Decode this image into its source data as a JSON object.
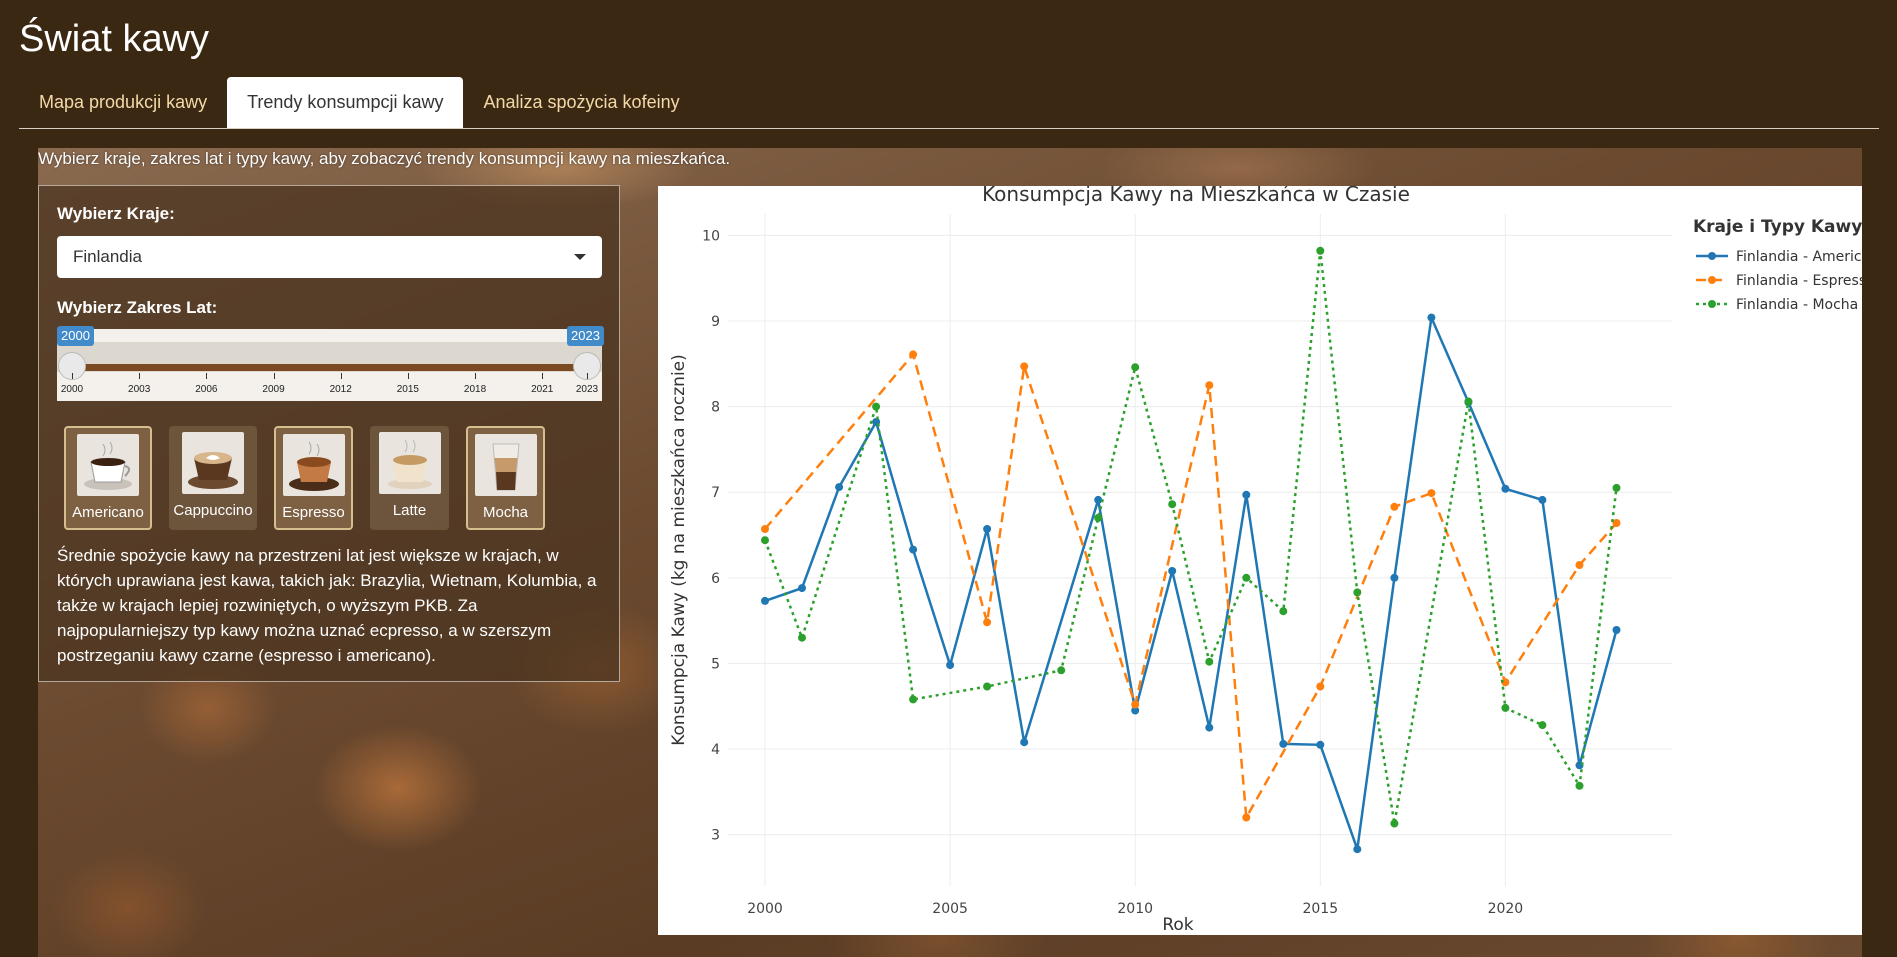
{
  "app": {
    "title": "Świat kawy"
  },
  "tabs": [
    {
      "label": "Mapa produkcji kawy",
      "active": false
    },
    {
      "label": "Trendy konsumpcji kawy",
      "active": true
    },
    {
      "label": "Analiza spożycia kofeiny",
      "active": false
    }
  ],
  "intro": "Wybierz kraje, zakres lat i typy kawy, aby zobaczyć trendy konsumpcji kawy na mieszkańca.",
  "sidebar": {
    "country_label": "Wybierz Kraje:",
    "country_value": "Finlandia",
    "years_label": "Wybierz Zakres Lat:",
    "year_min": "2000",
    "year_max": "2023",
    "year_ticks": [
      "2000",
      "2003",
      "2006",
      "2009",
      "2012",
      "2015",
      "2018",
      "2021",
      "2023"
    ],
    "coffee_types": [
      {
        "label": "Americano",
        "selected": true
      },
      {
        "label": "Cappuccino",
        "selected": false
      },
      {
        "label": "Espresso",
        "selected": true
      },
      {
        "label": "Latte",
        "selected": false
      },
      {
        "label": "Mocha",
        "selected": true
      }
    ],
    "description": "Średnie spożycie kawy na przestrzeni lat jest większe w krajach, w których uprawiana jest kawa, takich jak: Brazylia, Wietnam, Kolumbia, a także w krajach lepiej rozwiniętych, o wyższym PKB. Za najpopularniejszy typ kawy można uznać ecpresso, a w szerszym postrzeganiu kawy czarne (espresso i americano)."
  },
  "colors": {
    "background": "#3b2812",
    "americano": "#1f77b4",
    "espresso": "#ff7f0e",
    "mocha": "#2ca02c",
    "slider_accent": "#428bca"
  },
  "chart_data": {
    "type": "line",
    "title": "Konsumpcja Kawy na Mieszkańca w Czasie",
    "xlabel": "Rok",
    "ylabel": "Konsumpcja Kawy (kg na mieszkańca rocznie)",
    "legend_title": "Kraje i Typy Kawy",
    "legend_position": "top-right",
    "xlim": [
      1999.0,
      2024.5
    ],
    "ylim": [
      2.4,
      10.25
    ],
    "x_ticks": [
      2000,
      2005,
      2010,
      2015,
      2020
    ],
    "y_ticks": [
      3,
      4,
      5,
      6,
      7,
      8,
      9,
      10
    ],
    "grid": true,
    "series": [
      {
        "name": "Finlandia - Americano",
        "style": "solid",
        "color": "#1f77b4",
        "points": [
          [
            2000,
            5.73
          ],
          [
            2001,
            5.88
          ],
          [
            2002,
            7.06
          ],
          [
            2003,
            7.82
          ],
          [
            2004,
            6.33
          ],
          [
            2005,
            4.98
          ],
          [
            2006,
            6.57
          ],
          [
            2007,
            4.08
          ],
          [
            2009,
            6.91
          ],
          [
            2010,
            4.45
          ],
          [
            2011,
            6.08
          ],
          [
            2012,
            4.25
          ],
          [
            2013,
            6.97
          ],
          [
            2014,
            4.06
          ],
          [
            2015,
            4.05
          ],
          [
            2016,
            2.83
          ],
          [
            2017,
            6.0
          ],
          [
            2018,
            9.04
          ],
          [
            2019,
            8.05
          ],
          [
            2020,
            7.04
          ],
          [
            2021,
            6.91
          ],
          [
            2022,
            3.81
          ],
          [
            2023,
            5.39
          ]
        ]
      },
      {
        "name": "Finlandia - Espresso",
        "style": "dash",
        "color": "#ff7f0e",
        "points": [
          [
            2000,
            6.57
          ],
          [
            2004,
            8.61
          ],
          [
            2006,
            5.48
          ],
          [
            2007,
            8.47
          ],
          [
            2010,
            4.52
          ],
          [
            2012,
            8.25
          ],
          [
            2013,
            3.2
          ],
          [
            2015,
            4.73
          ],
          [
            2017,
            6.83
          ],
          [
            2018,
            6.99
          ],
          [
            2020,
            4.78
          ],
          [
            2022,
            6.15
          ],
          [
            2023,
            6.64
          ]
        ]
      },
      {
        "name": "Finlandia - Mocha",
        "style": "dot",
        "color": "#2ca02c",
        "points": [
          [
            2000,
            6.44
          ],
          [
            2001,
            5.3
          ],
          [
            2003,
            8.0
          ],
          [
            2004,
            4.58
          ],
          [
            2006,
            4.73
          ],
          [
            2008,
            4.92
          ],
          [
            2009,
            6.7
          ],
          [
            2010,
            8.46
          ],
          [
            2011,
            6.86
          ],
          [
            2012,
            5.02
          ],
          [
            2013,
            6.0
          ],
          [
            2014,
            5.61
          ],
          [
            2015,
            9.82
          ],
          [
            2016,
            5.83
          ],
          [
            2017,
            3.13
          ],
          [
            2019,
            8.06
          ],
          [
            2020,
            4.48
          ],
          [
            2021,
            4.28
          ],
          [
            2022,
            3.57
          ],
          [
            2023,
            7.05
          ]
        ]
      }
    ]
  }
}
